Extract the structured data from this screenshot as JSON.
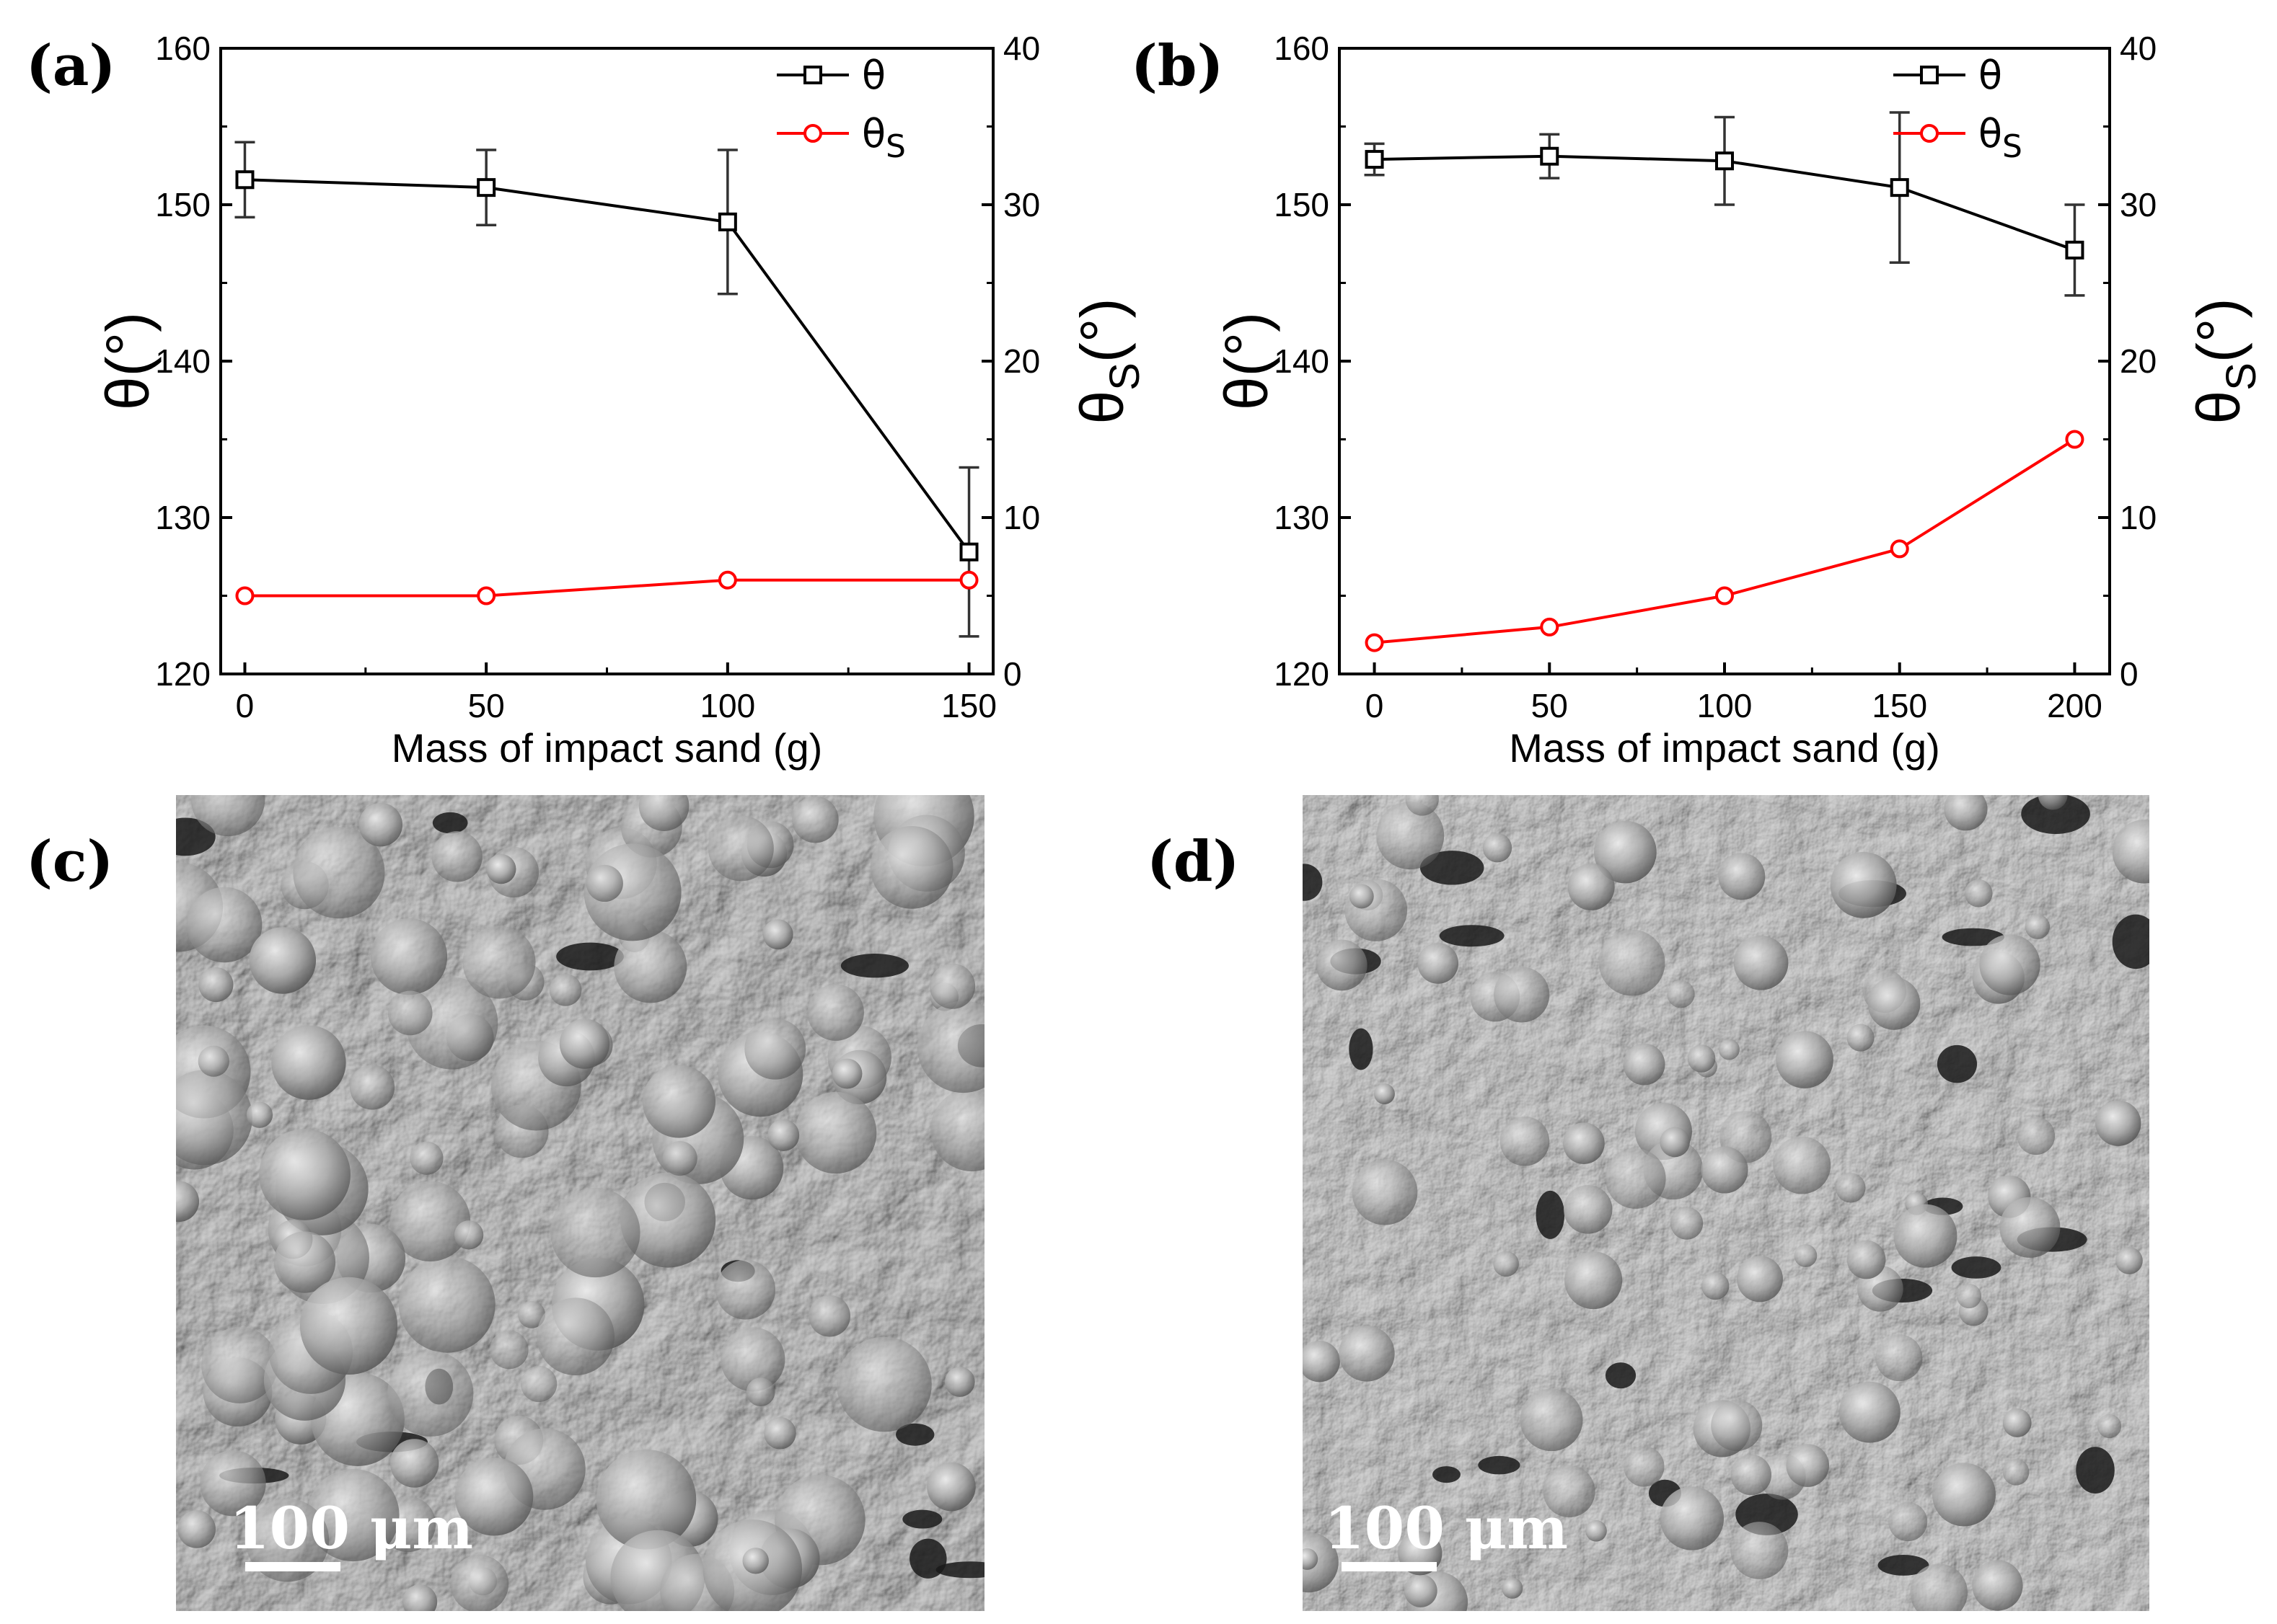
{
  "panels": {
    "a": {
      "label": "(a)"
    },
    "b": {
      "label": "(b)"
    },
    "c": {
      "label": "(c)",
      "scale_bar": "100 μm"
    },
    "d": {
      "label": "(d)",
      "scale_bar": "100 μm"
    }
  },
  "colors": {
    "theta": "#000000",
    "theta_s": "#ff0000",
    "sem_base": "#6e6e6e"
  },
  "chart_data": [
    {
      "type": "line",
      "panel": "a",
      "x": [
        0,
        50,
        100,
        150
      ],
      "xticks": [
        "0",
        "50",
        "100",
        "150"
      ],
      "xlim": [
        -5,
        155
      ],
      "xlabel": "Mass of impact sand (g)",
      "ylabel_left": "θ(°)",
      "ylabel_right": "θ",
      "ylabel_right_sub": "S",
      "ylabel_right_tail": "(°)",
      "ylim_left": [
        120,
        160
      ],
      "yticks_left": [
        "120",
        "130",
        "140",
        "150",
        "160"
      ],
      "ylim_right": [
        0,
        40
      ],
      "yticks_right": [
        "0",
        "10",
        "20",
        "30",
        "40"
      ],
      "series": [
        {
          "name": "θ",
          "axis": "left",
          "marker": "square",
          "color": "#000000",
          "values": [
            151.6,
            151.1,
            148.9,
            127.8
          ],
          "errors": [
            2.4,
            2.4,
            4.6,
            5.4
          ]
        },
        {
          "name": "θS",
          "axis": "right",
          "marker": "circle",
          "color": "#ff0000",
          "values": [
            5,
            5,
            6,
            6
          ]
        }
      ],
      "legend": {
        "position": "top-right",
        "entries": [
          "θ",
          "θ",
          "S"
        ]
      }
    },
    {
      "type": "line",
      "panel": "b",
      "x": [
        0,
        50,
        100,
        150,
        200
      ],
      "xticks": [
        "0",
        "50",
        "100",
        "150",
        "200"
      ],
      "xlim": [
        -10,
        210
      ],
      "xlabel": "Mass of impact sand (g)",
      "ylabel_left": "θ(°)",
      "ylabel_right": "θ",
      "ylabel_right_sub": "S",
      "ylabel_right_tail": "(°)",
      "ylim_left": [
        120,
        160
      ],
      "yticks_left": [
        "120",
        "130",
        "140",
        "150",
        "160"
      ],
      "ylim_right": [
        0,
        40
      ],
      "yticks_right": [
        "0",
        "10",
        "20",
        "30",
        "40"
      ],
      "series": [
        {
          "name": "θ",
          "axis": "left",
          "marker": "square",
          "color": "#000000",
          "values": [
            152.9,
            153.1,
            152.8,
            151.1,
            147.1
          ],
          "errors": [
            1.0,
            1.4,
            2.8,
            4.8,
            2.9
          ]
        },
        {
          "name": "θS",
          "axis": "right",
          "marker": "circle",
          "color": "#ff0000",
          "values": [
            2,
            3,
            5,
            8,
            15
          ]
        }
      ],
      "legend": {
        "position": "top-right",
        "entries": [
          "θ",
          "θ",
          "S"
        ]
      }
    }
  ]
}
